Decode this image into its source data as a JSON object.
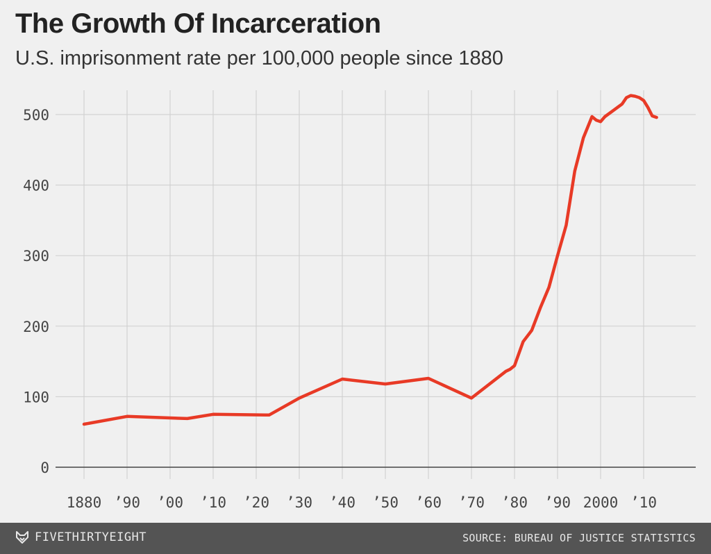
{
  "header": {
    "title": "The Growth Of Incarceration",
    "subtitle": "U.S. imprisonment rate per 100,000 people since 1880"
  },
  "footer": {
    "brand": "FIVETHIRTYEIGHT",
    "source": "SOURCE: BUREAU OF JUSTICE STATISTICS"
  },
  "colors": {
    "line": "#e83a26",
    "grid": "#cdcdcd",
    "background": "#f0f0f0",
    "footer": "#545454"
  },
  "chart_data": {
    "type": "line",
    "title": "The Growth Of Incarceration",
    "subtitle": "U.S. imprisonment rate per 100,000 people since 1880",
    "xlabel": "",
    "ylabel": "",
    "xlim": [
      1880,
      2013
    ],
    "ylim": [
      0,
      520
    ],
    "grid": true,
    "x_ticks": [
      1880,
      1890,
      1900,
      1910,
      1920,
      1930,
      1940,
      1950,
      1960,
      1970,
      1980,
      1990,
      2000,
      2010
    ],
    "x_tick_labels": [
      "1880",
      "’90",
      "’00",
      "’10",
      "’20",
      "’30",
      "’40",
      "’50",
      "’60",
      "’70",
      "’80",
      "’90",
      "2000",
      "’10"
    ],
    "y_ticks": [
      0,
      100,
      200,
      300,
      400,
      500
    ],
    "y_tick_labels": [
      "0",
      "100",
      "200",
      "300",
      "400",
      "500"
    ],
    "series": [
      {
        "values": [
          [
            1880,
            61
          ],
          [
            1890,
            72
          ],
          [
            1904,
            69
          ],
          [
            1910,
            75
          ],
          [
            1923,
            74
          ],
          [
            1930,
            98
          ],
          [
            1940,
            125
          ],
          [
            1950,
            118
          ],
          [
            1960,
            126
          ],
          [
            1970,
            98
          ],
          [
            1978,
            136
          ],
          [
            1979,
            139
          ],
          [
            1980,
            144
          ],
          [
            1982,
            178
          ],
          [
            1984,
            194
          ],
          [
            1986,
            226
          ],
          [
            1988,
            255
          ],
          [
            1990,
            300
          ],
          [
            1992,
            343
          ],
          [
            1994,
            420
          ],
          [
            1996,
            467
          ],
          [
            1998,
            497
          ],
          [
            1999,
            492
          ],
          [
            2000,
            490
          ],
          [
            2001,
            497
          ],
          [
            2003,
            506
          ],
          [
            2005,
            515
          ],
          [
            2006,
            524
          ],
          [
            2007,
            527
          ],
          [
            2008,
            526
          ],
          [
            2009,
            524
          ],
          [
            2010,
            520
          ],
          [
            2011,
            510
          ],
          [
            2012,
            498
          ],
          [
            2013,
            496
          ]
        ]
      }
    ]
  }
}
